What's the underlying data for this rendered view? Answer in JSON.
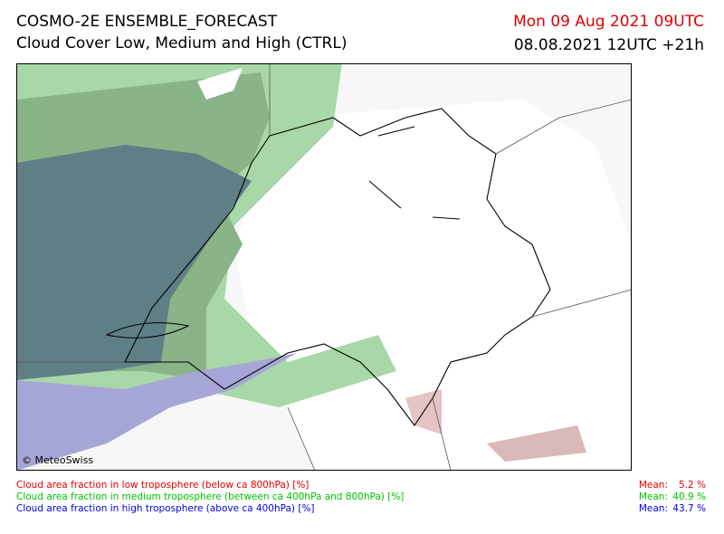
{
  "header": {
    "title": "COSMO-2E ENSEMBLE_FORECAST",
    "subtitle": "Cloud Cover Low, Medium and High (CTRL)",
    "valid_time": "Mon 09 Aug 2021 09UTC",
    "run": "08.08.2021 12UTC +21h"
  },
  "map": {
    "copyright": "© MeteoSwiss"
  },
  "legend": {
    "rows": [
      {
        "label": "Cloud area fraction in low troposphere (below ca 800hPa) [%]",
        "mean_label": "Mean:",
        "mean": "5.2 %",
        "color": "#e00000"
      },
      {
        "label": "Cloud area fraction in medium troposphere (between ca 400hPa and 800hPa) [%]",
        "mean_label": "Mean:",
        "mean": "40.9 %",
        "color": "#00c000"
      },
      {
        "label": "Cloud area fraction in high troposphere (above ca 400hPa) [%]",
        "mean_label": "Mean:",
        "mean": "43.7 %",
        "color": "#0000e0"
      }
    ]
  }
}
